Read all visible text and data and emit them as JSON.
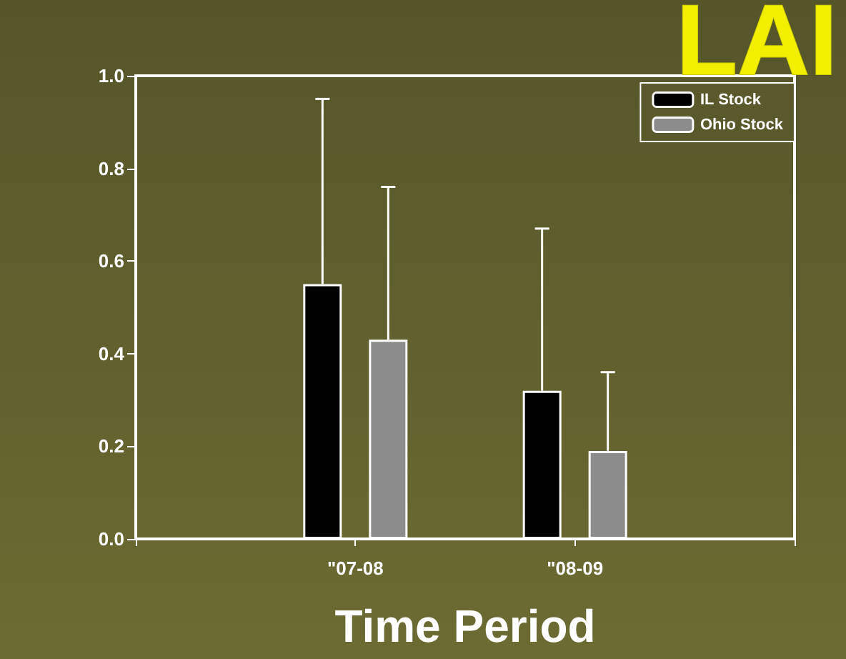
{
  "chart_data": {
    "type": "bar",
    "title": "LAI",
    "xlabel": "Time Period",
    "categories": [
      null,
      "\"07-08",
      "\"08-09",
      null
    ],
    "series": [
      {
        "name": "IL Stock",
        "color": "#000000",
        "values": [
          null,
          0.55,
          0.32,
          null
        ],
        "errors": [
          null,
          [
            0.55,
            0.95
          ],
          [
            0.32,
            0.67
          ],
          null
        ]
      },
      {
        "name": "Ohio Stock",
        "color": "#8c8c8c",
        "values": [
          null,
          0.43,
          0.19,
          null
        ],
        "errors": [
          null,
          [
            0.43,
            0.76
          ],
          [
            0.19,
            0.36
          ],
          null
        ]
      }
    ],
    "ylim": [
      0,
      1
    ],
    "yticks": [
      {
        "value": 0,
        "label": "0.0"
      },
      {
        "value": 0.2,
        "label": "0.2"
      },
      {
        "value": 0.4,
        "label": "0.4"
      },
      {
        "value": 0.6,
        "label": "0.6"
      },
      {
        "value": 0.8,
        "label": "0.8"
      },
      {
        "value": 1,
        "label": "1.0"
      }
    ],
    "grid": false,
    "legend": "top right"
  }
}
